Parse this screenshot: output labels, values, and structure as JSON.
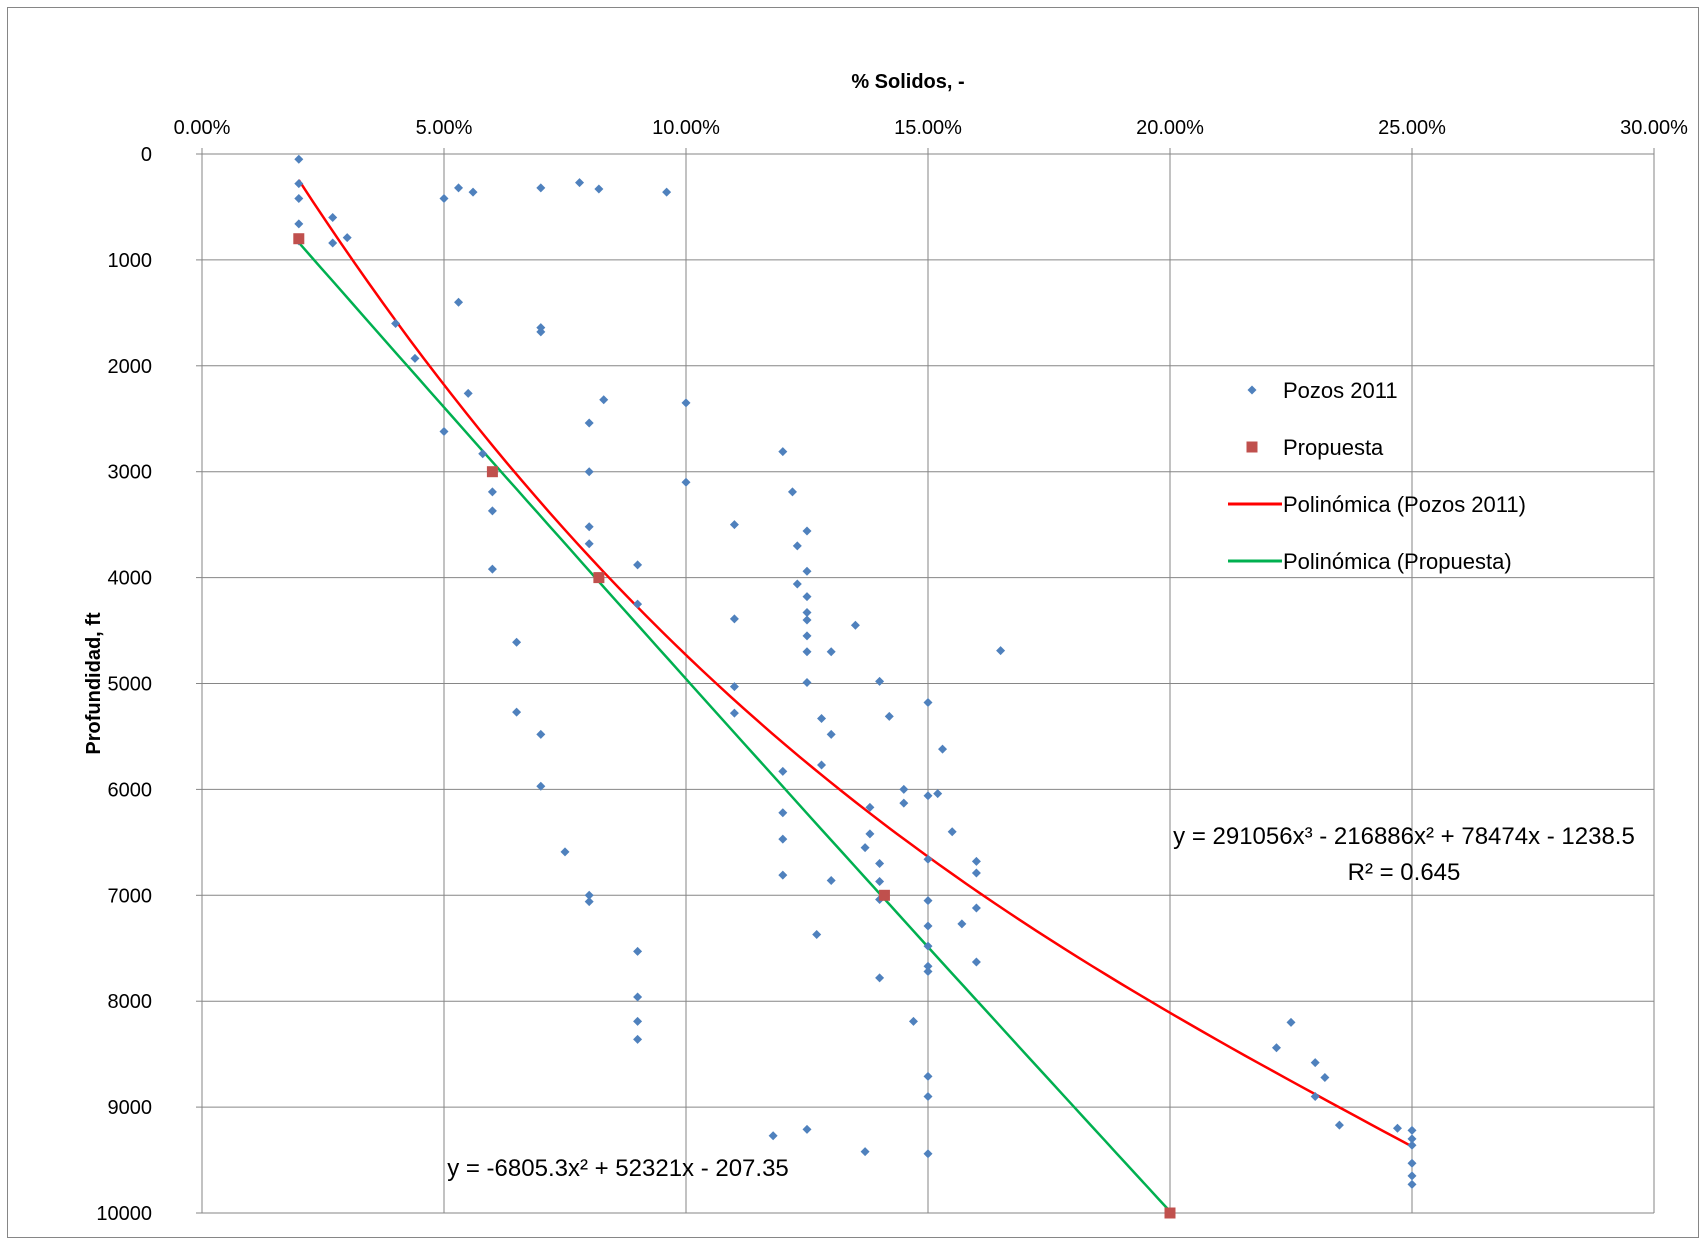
{
  "chart_data": {
    "type": "scatter",
    "title": "",
    "xlabel": "% Solidos, -",
    "ylabel": "Profundidad, ft",
    "xlim": [
      0,
      0.3
    ],
    "ylim": [
      0,
      10000
    ],
    "y_reversed": true,
    "x_axis_position": "top",
    "x_ticks": [
      "0.00%",
      "5.00%",
      "10.00%",
      "15.00%",
      "20.00%",
      "25.00%",
      "30.00%"
    ],
    "y_ticks": [
      "0",
      "1000",
      "2000",
      "3000",
      "4000",
      "5000",
      "6000",
      "7000",
      "8000",
      "9000",
      "10000"
    ],
    "grid": "horizontal major gridlines",
    "legend_position": "right",
    "series": [
      {
        "name": "Pozos 2011",
        "marker": "diamond",
        "color": "#4F81BD",
        "points": [
          [
            0.02,
            50
          ],
          [
            0.02,
            280
          ],
          [
            0.02,
            420
          ],
          [
            0.02,
            660
          ],
          [
            0.02,
            820
          ],
          [
            0.027,
            600
          ],
          [
            0.027,
            840
          ],
          [
            0.03,
            790
          ],
          [
            0.05,
            420
          ],
          [
            0.053,
            320
          ],
          [
            0.056,
            360
          ],
          [
            0.07,
            320
          ],
          [
            0.078,
            270
          ],
          [
            0.082,
            330
          ],
          [
            0.096,
            360
          ],
          [
            0.053,
            1400
          ],
          [
            0.07,
            1640
          ],
          [
            0.07,
            1680
          ],
          [
            0.04,
            1600
          ],
          [
            0.044,
            1930
          ],
          [
            0.055,
            2260
          ],
          [
            0.05,
            2620
          ],
          [
            0.058,
            2830
          ],
          [
            0.08,
            2540
          ],
          [
            0.083,
            2320
          ],
          [
            0.1,
            2350
          ],
          [
            0.06,
            3190
          ],
          [
            0.06,
            3370
          ],
          [
            0.08,
            3000
          ],
          [
            0.08,
            3520
          ],
          [
            0.08,
            3680
          ],
          [
            0.1,
            3100
          ],
          [
            0.06,
            3920
          ],
          [
            0.09,
            3880
          ],
          [
            0.09,
            4250
          ],
          [
            0.11,
            3500
          ],
          [
            0.12,
            2810
          ],
          [
            0.122,
            3190
          ],
          [
            0.123,
            3700
          ],
          [
            0.125,
            3560
          ],
          [
            0.125,
            3940
          ],
          [
            0.123,
            4060
          ],
          [
            0.125,
            4180
          ],
          [
            0.125,
            4330
          ],
          [
            0.125,
            4400
          ],
          [
            0.125,
            4550
          ],
          [
            0.125,
            4700
          ],
          [
            0.13,
            4700
          ],
          [
            0.135,
            4450
          ],
          [
            0.165,
            4690
          ],
          [
            0.11,
            4390
          ],
          [
            0.065,
            4610
          ],
          [
            0.065,
            5270
          ],
          [
            0.07,
            5480
          ],
          [
            0.07,
            5970
          ],
          [
            0.11,
            5030
          ],
          [
            0.11,
            5280
          ],
          [
            0.125,
            4990
          ],
          [
            0.128,
            5330
          ],
          [
            0.13,
            5480
          ],
          [
            0.128,
            5770
          ],
          [
            0.12,
            5830
          ],
          [
            0.14,
            4980
          ],
          [
            0.142,
            5310
          ],
          [
            0.15,
            5180
          ],
          [
            0.153,
            5620
          ],
          [
            0.145,
            6000
          ],
          [
            0.145,
            6130
          ],
          [
            0.15,
            6060
          ],
          [
            0.152,
            6040
          ],
          [
            0.138,
            6170
          ],
          [
            0.12,
            6220
          ],
          [
            0.12,
            6470
          ],
          [
            0.12,
            6810
          ],
          [
            0.13,
            6860
          ],
          [
            0.127,
            7370
          ],
          [
            0.138,
            6420
          ],
          [
            0.137,
            6550
          ],
          [
            0.14,
            6700
          ],
          [
            0.14,
            6870
          ],
          [
            0.14,
            7040
          ],
          [
            0.155,
            6400
          ],
          [
            0.15,
            6660
          ],
          [
            0.16,
            6680
          ],
          [
            0.16,
            6790
          ],
          [
            0.16,
            7120
          ],
          [
            0.15,
            7050
          ],
          [
            0.15,
            7290
          ],
          [
            0.157,
            7270
          ],
          [
            0.15,
            7480
          ],
          [
            0.16,
            7630
          ],
          [
            0.15,
            7670
          ],
          [
            0.15,
            7720
          ],
          [
            0.14,
            7780
          ],
          [
            0.147,
            8190
          ],
          [
            0.075,
            6590
          ],
          [
            0.08,
            7000
          ],
          [
            0.08,
            7060
          ],
          [
            0.09,
            7530
          ],
          [
            0.09,
            7960
          ],
          [
            0.09,
            8190
          ],
          [
            0.09,
            8360
          ],
          [
            0.15,
            8710
          ],
          [
            0.15,
            8900
          ],
          [
            0.118,
            9270
          ],
          [
            0.125,
            9210
          ],
          [
            0.137,
            9420
          ],
          [
            0.15,
            9440
          ],
          [
            0.222,
            8440
          ],
          [
            0.225,
            8200
          ],
          [
            0.23,
            8580
          ],
          [
            0.232,
            8720
          ],
          [
            0.23,
            8900
          ],
          [
            0.235,
            9170
          ],
          [
            0.247,
            9200
          ],
          [
            0.25,
            9220
          ],
          [
            0.25,
            9300
          ],
          [
            0.25,
            9360
          ],
          [
            0.25,
            9530
          ],
          [
            0.25,
            9650
          ],
          [
            0.25,
            9730
          ]
        ]
      },
      {
        "name": "Propuesta",
        "marker": "square",
        "color": "#C0504D",
        "points": [
          [
            0.02,
            800
          ],
          [
            0.06,
            3000
          ],
          [
            0.082,
            4000
          ],
          [
            0.141,
            7000
          ],
          [
            0.2,
            10000
          ]
        ]
      }
    ],
    "trendlines": [
      {
        "name": "Polinómica (Pozos 2011)",
        "color": "#FF0000",
        "coefficients": [
          291056,
          -216886,
          78474,
          -1238.5
        ],
        "x_range": [
          0.02,
          0.25
        ],
        "equation": "y = 291056x³ - 216886x² + 78474x - 1238.5",
        "r2": "R² = 0.645"
      },
      {
        "name": "Polinómica (Propuesta)",
        "color": "#00B050",
        "coefficients": [
          -6805.3,
          52321,
          -207.35
        ],
        "x_range": [
          0.02,
          0.2
        ],
        "equation": "y = -6805.3x² + 52321x - 207.35"
      }
    ]
  }
}
